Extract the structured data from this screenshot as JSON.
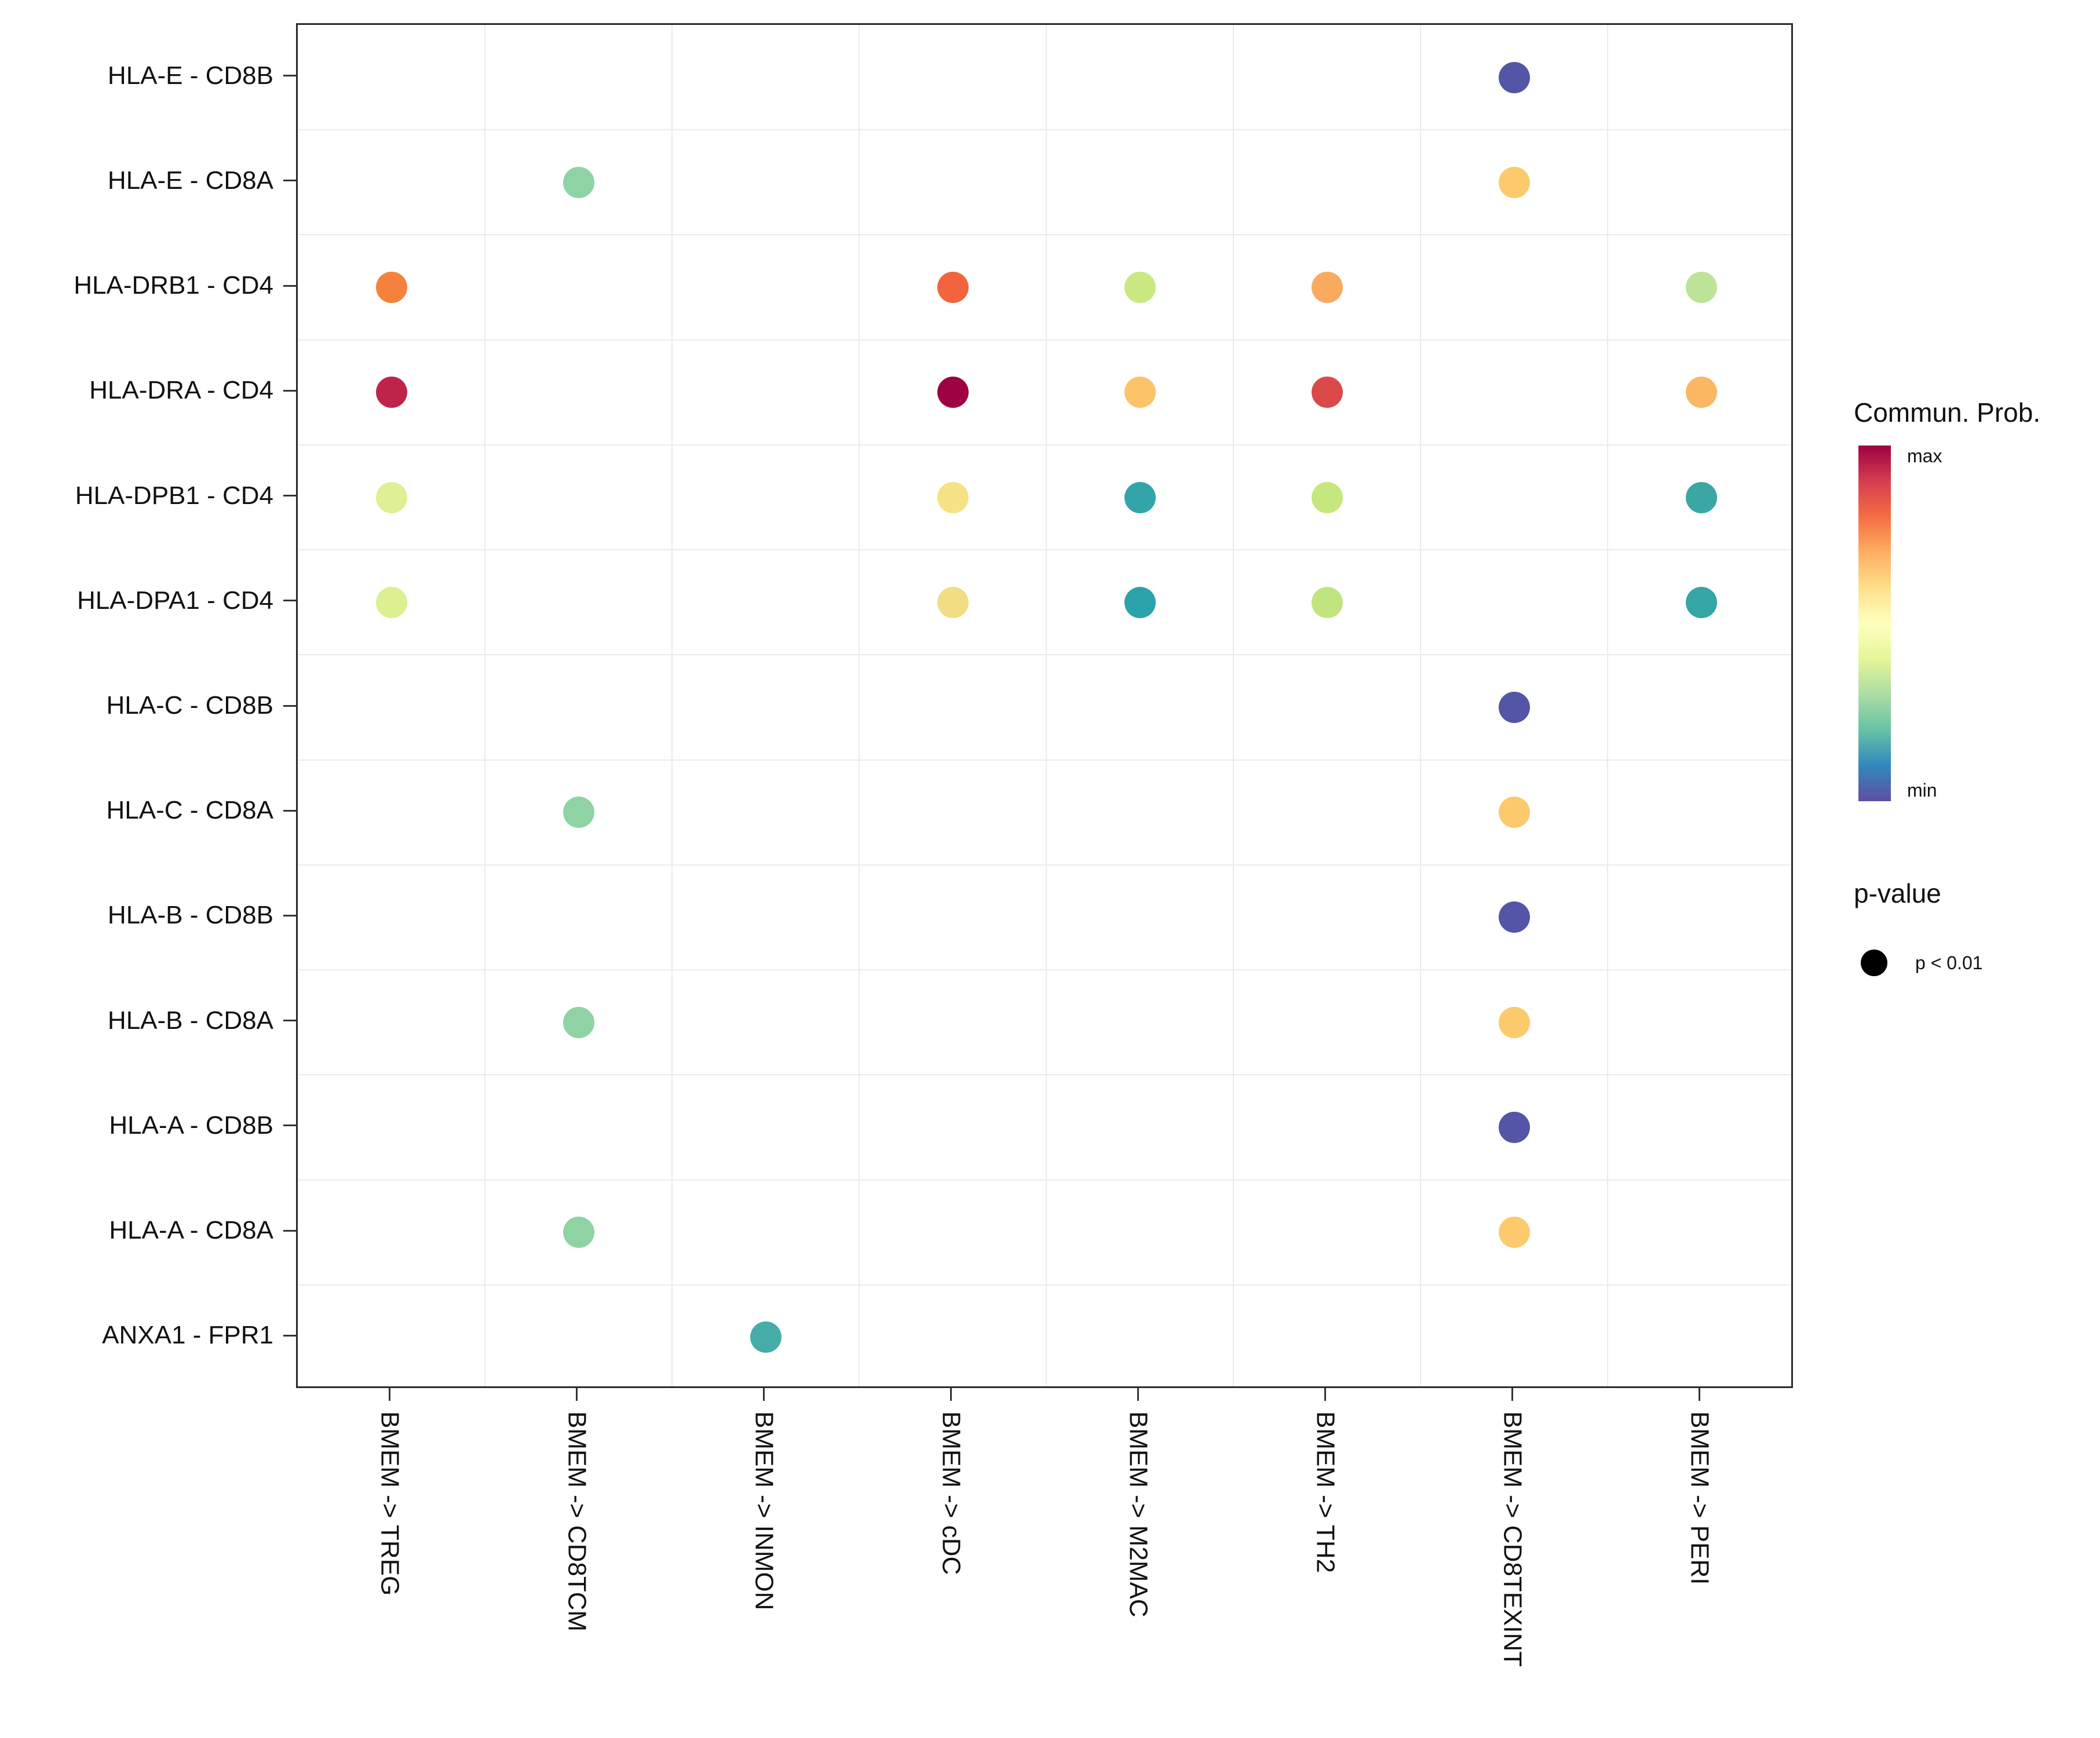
{
  "chart_data": {
    "type": "scatter",
    "subtype": "bubble-dotplot",
    "title": "",
    "xlabel": "",
    "ylabel": "",
    "grid": "category-boundaries",
    "x_categories": [
      "BMEM -> TREG",
      "BMEM -> CD8TCM",
      "BMEM -> INMON",
      "BMEM -> cDC",
      "BMEM -> M2MAC",
      "BMEM -> TH2",
      "BMEM -> CD8TEXINT",
      "BMEM -> PERI"
    ],
    "y_categories": [
      "HLA-E - CD8B",
      "HLA-E - CD8A",
      "HLA-DRB1 - CD4",
      "HLA-DRA - CD4",
      "HLA-DPB1 - CD4",
      "HLA-DPA1 - CD4",
      "HLA-C - CD8B",
      "HLA-C - CD8A",
      "HLA-B - CD8B",
      "HLA-B - CD8A",
      "HLA-A - CD8B",
      "HLA-A - CD8A",
      "ANXA1 - FPR1"
    ],
    "points": [
      {
        "x": 0,
        "y": 2,
        "color": "#F5813C"
      },
      {
        "x": 0,
        "y": 3,
        "color": "#BE2449"
      },
      {
        "x": 0,
        "y": 4,
        "color": "#DEF093"
      },
      {
        "x": 0,
        "y": 5,
        "color": "#DCEF91"
      },
      {
        "x": 1,
        "y": 1,
        "color": "#8FD3A4"
      },
      {
        "x": 1,
        "y": 7,
        "color": "#8FD3A4"
      },
      {
        "x": 1,
        "y": 9,
        "color": "#8FD3A4"
      },
      {
        "x": 1,
        "y": 11,
        "color": "#8FD3A4"
      },
      {
        "x": 2,
        "y": 12,
        "color": "#45ADA8"
      },
      {
        "x": 3,
        "y": 2,
        "color": "#F1643D"
      },
      {
        "x": 3,
        "y": 3,
        "color": "#9E0142"
      },
      {
        "x": 3,
        "y": 4,
        "color": "#F6E285"
      },
      {
        "x": 3,
        "y": 5,
        "color": "#F1DD84"
      },
      {
        "x": 4,
        "y": 2,
        "color": "#C9E881"
      },
      {
        "x": 4,
        "y": 3,
        "color": "#FCC369"
      },
      {
        "x": 4,
        "y": 4,
        "color": "#33A5A8"
      },
      {
        "x": 4,
        "y": 5,
        "color": "#2CA2AB"
      },
      {
        "x": 5,
        "y": 2,
        "color": "#FAAA5F"
      },
      {
        "x": 5,
        "y": 3,
        "color": "#DB4A4B"
      },
      {
        "x": 5,
        "y": 4,
        "color": "#C6E77E"
      },
      {
        "x": 5,
        "y": 5,
        "color": "#C0E57F"
      },
      {
        "x": 6,
        "y": 0,
        "color": "#5355A6"
      },
      {
        "x": 6,
        "y": 1,
        "color": "#FCCA6D"
      },
      {
        "x": 6,
        "y": 6,
        "color": "#5355A6"
      },
      {
        "x": 6,
        "y": 7,
        "color": "#FCCA6D"
      },
      {
        "x": 6,
        "y": 8,
        "color": "#5355A6"
      },
      {
        "x": 6,
        "y": 9,
        "color": "#FCCA6D"
      },
      {
        "x": 6,
        "y": 10,
        "color": "#5355A6"
      },
      {
        "x": 6,
        "y": 11,
        "color": "#FCCA6D"
      },
      {
        "x": 7,
        "y": 2,
        "color": "#BDE396"
      },
      {
        "x": 7,
        "y": 3,
        "color": "#FBB763"
      },
      {
        "x": 7,
        "y": 4,
        "color": "#3BA7A2"
      },
      {
        "x": 7,
        "y": 5,
        "color": "#35A5A5"
      }
    ],
    "legend": {
      "colorbar_title": "Commun. Prob.",
      "colorbar_max_label": "max",
      "colorbar_min_label": "min",
      "colorbar_colors": [
        "#9E0142",
        "#D53E4F",
        "#F46D43",
        "#FDAE61",
        "#FEE08B",
        "#FFFFBF",
        "#E6F598",
        "#ABDDA4",
        "#66C2A5",
        "#3288BD",
        "#5E4FA2"
      ],
      "size_title": "p-value",
      "size_label": "p < 0.01"
    }
  }
}
